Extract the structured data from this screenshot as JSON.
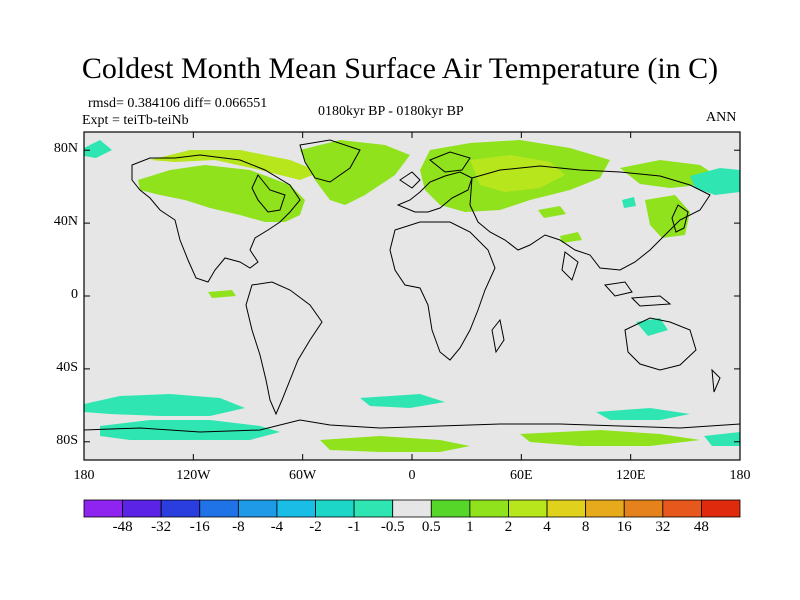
{
  "title": "Coldest Month Mean Surface Air Temperature (in C)",
  "stats": "rmsd= 0.384106 diff= 0.066551",
  "experiment": "Expt = teiTb-teiNb",
  "period": "0180kyr BP - 0180kyr BP",
  "season": "ANN",
  "lat_ticks": [
    {
      "label": "80N",
      "lat": 80
    },
    {
      "label": "40N",
      "lat": 40
    },
    {
      "label": "0",
      "lat": 0
    },
    {
      "label": "40S",
      "lat": -40
    },
    {
      "label": "80S",
      "lat": -80
    }
  ],
  "lon_ticks": [
    {
      "label": "180",
      "lon": -180
    },
    {
      "label": "120W",
      "lon": -120
    },
    {
      "label": "60W",
      "lon": -60
    },
    {
      "label": "0",
      "lon": 0
    },
    {
      "label": "60E",
      "lon": 60
    },
    {
      "label": "120E",
      "lon": 120
    },
    {
      "label": "180",
      "lon": 180
    }
  ],
  "colorbar": {
    "colors": [
      "#8f23f0",
      "#5a23e6",
      "#2a3ee0",
      "#1f73e6",
      "#1e9ae6",
      "#19bde6",
      "#1cd6c8",
      "#2fe6b2",
      "#e6e6e6",
      "#57d62a",
      "#8fe21c",
      "#b8e61c",
      "#e0d21c",
      "#e6aa1c",
      "#e6821c",
      "#e6581c",
      "#e02a0e"
    ],
    "labels": [
      "-48",
      "-32",
      "-16",
      "-8",
      "-4",
      "-2",
      "-1",
      "-0.5",
      "0.5",
      "1",
      "2",
      "4",
      "8",
      "16",
      "32",
      "48"
    ]
  },
  "colors": {
    "ocean_neutral": "#e6e6e6",
    "warm_light": "#8fe21c",
    "warm_mid": "#b8e61c",
    "cool_light": "#2fe6b2",
    "cool_mid": "#1cd6c8"
  }
}
